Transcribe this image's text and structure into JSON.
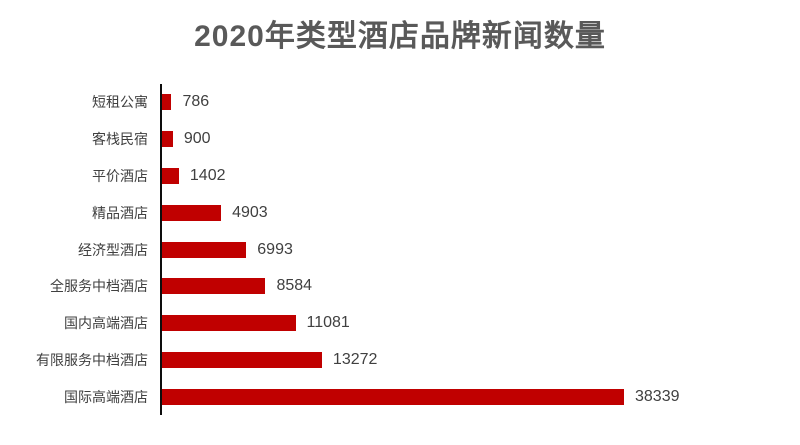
{
  "title": "2020年类型酒店品牌新闻数量",
  "colors": {
    "bar": "#c00000",
    "title_text": "#595959",
    "category_text": "#404040",
    "value_text": "#404040",
    "axis_line": "#0d0d0d",
    "background": "#ffffff"
  },
  "chart_data": {
    "type": "bar",
    "orientation": "horizontal",
    "title": "2020年类型酒店品牌新闻数量",
    "categories": [
      "短租公寓",
      "客栈民宿",
      "平价酒店",
      "精品酒店",
      "经济型酒店",
      "全服务中档酒店",
      "国内高端酒店",
      "有限服务中档酒店",
      "国际高端酒店"
    ],
    "values": [
      786,
      900,
      1402,
      4903,
      6993,
      8584,
      11081,
      13272,
      38339
    ],
    "xlabel": "",
    "ylabel": "",
    "xlim": [
      0,
      40000
    ],
    "data_labels": true,
    "grid": false,
    "legend": false
  }
}
